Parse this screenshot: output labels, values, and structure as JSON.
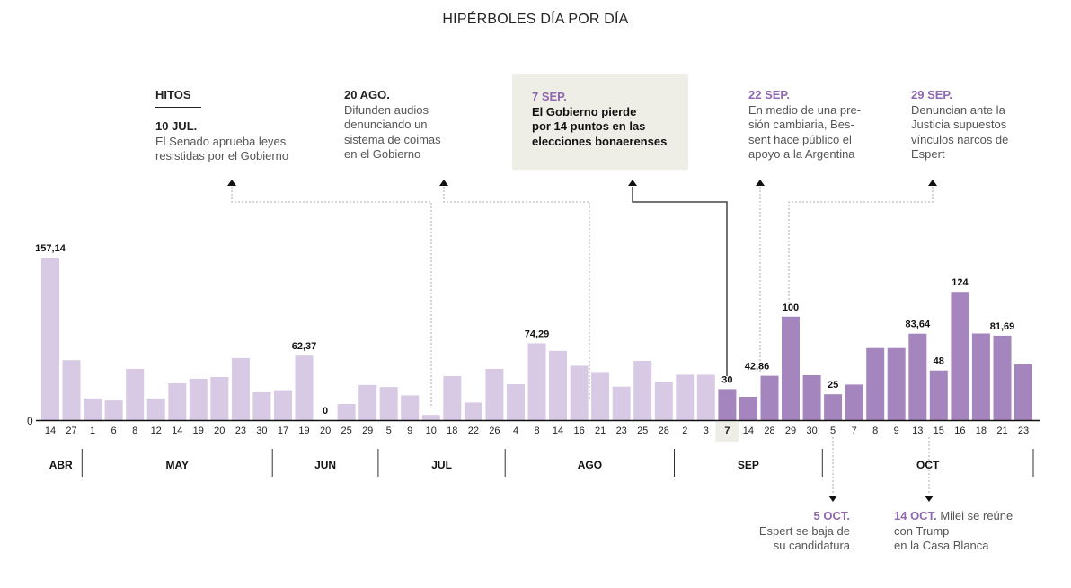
{
  "title": "HIPÉRBOLES DÍA POR DÍA",
  "legend_heading": "HITOS",
  "annotations": {
    "jul10": {
      "date": "10 JUL.",
      "text_lines": [
        "El Senado aprueba leyes",
        "resistidas por el Gobierno"
      ]
    },
    "ago20": {
      "date": "20 AGO.",
      "text_lines": [
        "Difunden audios",
        "denunciando un",
        "sistema de coimas",
        "en el Gobierno"
      ]
    },
    "sep7": {
      "date": "7 SEP.",
      "text_lines": [
        "El Gobierno pierde",
        "por 14 puntos en las",
        "elecciones bonaerenses"
      ]
    },
    "sep22": {
      "date": "22 SEP.",
      "text_lines": [
        "En medio de una pre-",
        "sión cambiaria, Bes-",
        "sent hace público el",
        "apoyo a la Argentina"
      ]
    },
    "sep29": {
      "date": "29 SEP.",
      "text_lines": [
        "Denuncian ante la",
        "Justicia supuestos",
        "vínculos narcos de",
        "Espert"
      ]
    },
    "oct5": {
      "date": "5 OCT.",
      "text_lines": [
        "Espert se baja de",
        "su candidatura"
      ]
    },
    "oct14": {
      "date": "14 OCT.",
      "text_lines": [
        "Milei se reúne",
        "con Trump",
        "en la Casa Blanca"
      ]
    }
  },
  "colors": {
    "bar_light": "#d8cae4",
    "bar_dark": "#a585be",
    "accent_text": "#8e66b1",
    "highlight_bg": "#efeee6"
  },
  "chart_data": {
    "type": "bar",
    "title": "HIPÉRBOLES DÍA POR DÍA",
    "xlabel": "",
    "ylabel": "",
    "ylim": [
      0,
      160
    ],
    "y_ticks": [
      "0"
    ],
    "grid": false,
    "categories": [
      "14",
      "27",
      "1",
      "6",
      "8",
      "12",
      "14",
      "19",
      "20",
      "23",
      "30",
      "17",
      "19",
      "20",
      "25",
      "29",
      "5",
      "9",
      "10",
      "18",
      "22",
      "26",
      "4",
      "8",
      "14",
      "16",
      "21",
      "23",
      "25",
      "28",
      "2",
      "3",
      "7",
      "14",
      "28",
      "29",
      "30",
      "5",
      "7",
      "8",
      "9",
      "13",
      "15",
      "16",
      "18",
      "21",
      "23"
    ],
    "months": [
      {
        "label": "ABR",
        "count": 2
      },
      {
        "label": "MAY",
        "count": 9
      },
      {
        "label": "JUN",
        "count": 5
      },
      {
        "label": "JUL",
        "count": 6
      },
      {
        "label": "AGO",
        "count": 8
      },
      {
        "label": "SEP",
        "count": 7
      },
      {
        "label": "OCT",
        "count": 10
      }
    ],
    "values": [
      157.14,
      58,
      21,
      19,
      49.5,
      21,
      35.7,
      40,
      41.7,
      60,
      27,
      29,
      62.37,
      0,
      15.6,
      34,
      32,
      24,
      5,
      42.5,
      17,
      49.5,
      34.7,
      74.29,
      67,
      52.6,
      46.5,
      32.4,
      57.3,
      37.3,
      43.9,
      43.9,
      30,
      22.6,
      42.86,
      100,
      43.4,
      25,
      34.4,
      69.7,
      69.7,
      83.64,
      48,
      124,
      83.8,
      81.69,
      53.8
    ],
    "data_labels": {
      "0": "157,14",
      "12": "62,37",
      "13": "0",
      "23": "74,29",
      "32": "30",
      "34": "42,86",
      "35": "100",
      "37": "25",
      "41": "83,64",
      "42": "48",
      "43": "124",
      "45": "81,69"
    },
    "highlight_from_index": 32,
    "highlight_tick_index": 32
  }
}
